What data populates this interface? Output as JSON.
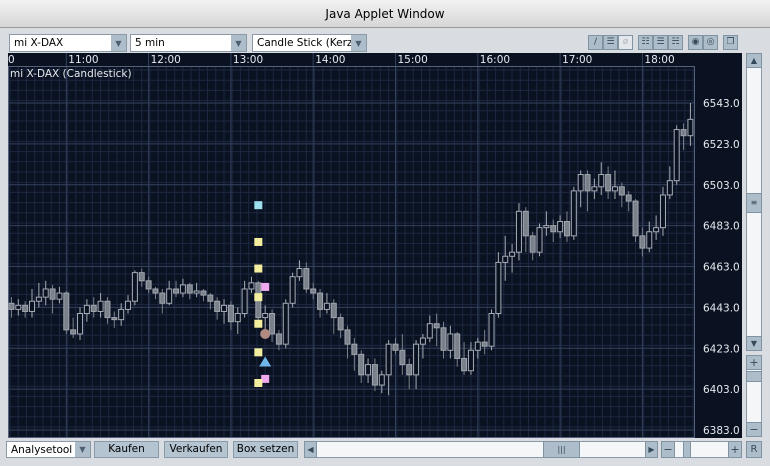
{
  "window": {
    "title": "Java Applet Window"
  },
  "toolbar": {
    "instrument": "mi X-DAX",
    "interval": "5 min",
    "chart_type": "Candle Stick (Kerzen",
    "icons": [
      "draw-line-icon",
      "horizontal-line-icon",
      "delete-icon",
      "grid-dense-icon",
      "grid-medium-icon",
      "grid-sparse-icon",
      "indicator-icon",
      "settings-icon",
      "detach-window-icon"
    ]
  },
  "chart": {
    "label": "mi X-DAX (Candlestick)",
    "time_labels": [
      "0",
      "11:00",
      "12:00",
      "13:00",
      "14:00",
      "15:00",
      "16:00",
      "17:00",
      "18:00"
    ],
    "price_labels": [
      "6543.0",
      "6523.0",
      "6503.0",
      "6483.0",
      "6463.0",
      "6443.0",
      "6423.0",
      "6403.0",
      "6383.0"
    ],
    "colors": {
      "background": "#0a1222",
      "grid": "#1c2740",
      "grid_major": "#34415c",
      "candle_up": "#a6acb5",
      "candle_down": "#7b818a",
      "text": "#e6e9ee"
    }
  },
  "chart_data": {
    "type": "candlestick",
    "title": "mi X-DAX (Candlestick)",
    "interval": "5 min",
    "ylim": [
      6383,
      6543
    ],
    "columns": [
      "time",
      "open",
      "high",
      "low",
      "close"
    ],
    "candles": [
      [
        "10:20",
        6445,
        6448,
        6438,
        6442
      ],
      [
        "10:25",
        6442,
        6447,
        6439,
        6444
      ],
      [
        "10:30",
        6444,
        6446,
        6438,
        6441
      ],
      [
        "10:35",
        6441,
        6452,
        6438,
        6446
      ],
      [
        "10:40",
        6446,
        6455,
        6443,
        6448
      ],
      [
        "10:45",
        6448,
        6456,
        6444,
        6452
      ],
      [
        "10:50",
        6452,
        6454,
        6440,
        6447
      ],
      [
        "10:55",
        6447,
        6453,
        6445,
        6450
      ],
      [
        "11:00",
        6450,
        6451,
        6430,
        6432
      ],
      [
        "11:05",
        6432,
        6438,
        6428,
        6430
      ],
      [
        "11:10",
        6430,
        6443,
        6427,
        6440
      ],
      [
        "11:15",
        6440,
        6447,
        6436,
        6444
      ],
      [
        "11:20",
        6444,
        6448,
        6438,
        6441
      ],
      [
        "11:25",
        6441,
        6450,
        6438,
        6446
      ],
      [
        "11:30",
        6446,
        6448,
        6435,
        6438
      ],
      [
        "11:35",
        6438,
        6441,
        6433,
        6437
      ],
      [
        "11:40",
        6437,
        6445,
        6434,
        6442
      ],
      [
        "11:45",
        6442,
        6449,
        6440,
        6446
      ],
      [
        "11:50",
        6446,
        6461,
        6444,
        6460
      ],
      [
        "11:55",
        6460,
        6462,
        6453,
        6456
      ],
      [
        "12:00",
        6456,
        6458,
        6450,
        6452
      ],
      [
        "12:05",
        6452,
        6453,
        6447,
        6450
      ],
      [
        "12:10",
        6450,
        6452,
        6440,
        6445
      ],
      [
        "12:15",
        6445,
        6456,
        6444,
        6452
      ],
      [
        "12:20",
        6452,
        6456,
        6448,
        6450
      ],
      [
        "12:25",
        6450,
        6457,
        6448,
        6454
      ],
      [
        "12:30",
        6454,
        6455,
        6447,
        6450
      ],
      [
        "12:35",
        6450,
        6455,
        6448,
        6451
      ],
      [
        "12:40",
        6451,
        6452,
        6446,
        6449
      ],
      [
        "12:45",
        6449,
        6450,
        6442,
        6446
      ],
      [
        "12:50",
        6446,
        6448,
        6437,
        6441
      ],
      [
        "12:55",
        6441,
        6447,
        6435,
        6444
      ],
      [
        "13:00",
        6444,
        6446,
        6432,
        6436
      ],
      [
        "13:05",
        6436,
        6443,
        6430,
        6440
      ],
      [
        "13:10",
        6440,
        6456,
        6438,
        6452
      ],
      [
        "13:15",
        6452,
        6458,
        6450,
        6455
      ],
      [
        "13:20",
        6455,
        6456,
        6435,
        6438
      ],
      [
        "13:25",
        6438,
        6444,
        6432,
        6440
      ],
      [
        "13:30",
        6440,
        6442,
        6426,
        6430
      ],
      [
        "13:35",
        6430,
        6432,
        6422,
        6425
      ],
      [
        "13:40",
        6425,
        6447,
        6423,
        6445
      ],
      [
        "13:45",
        6445,
        6460,
        6443,
        6458
      ],
      [
        "13:50",
        6458,
        6466,
        6456,
        6462
      ],
      [
        "13:55",
        6462,
        6465,
        6450,
        6452
      ],
      [
        "14:00",
        6452,
        6455,
        6447,
        6450
      ],
      [
        "14:05",
        6450,
        6452,
        6438,
        6442
      ],
      [
        "14:10",
        6442,
        6450,
        6440,
        6445
      ],
      [
        "14:15",
        6445,
        6447,
        6430,
        6438
      ],
      [
        "14:20",
        6438,
        6440,
        6428,
        6432
      ],
      [
        "14:25",
        6432,
        6434,
        6418,
        6425
      ],
      [
        "14:30",
        6425,
        6428,
        6412,
        6420
      ],
      [
        "14:35",
        6420,
        6422,
        6406,
        6410
      ],
      [
        "14:40",
        6410,
        6418,
        6406,
        6415
      ],
      [
        "14:45",
        6415,
        6418,
        6402,
        6405
      ],
      [
        "14:50",
        6405,
        6412,
        6401,
        6410
      ],
      [
        "14:55",
        6410,
        6427,
        6400,
        6425
      ],
      [
        "15:00",
        6425,
        6428,
        6420,
        6422
      ],
      [
        "15:05",
        6422,
        6430,
        6410,
        6415
      ],
      [
        "15:10",
        6415,
        6418,
        6403,
        6410
      ],
      [
        "15:15",
        6410,
        6427,
        6403,
        6425
      ],
      [
        "15:20",
        6425,
        6430,
        6418,
        6428
      ],
      [
        "15:25",
        6428,
        6439,
        6426,
        6435
      ],
      [
        "15:30",
        6435,
        6440,
        6424,
        6433
      ],
      [
        "15:35",
        6433,
        6436,
        6418,
        6422
      ],
      [
        "15:40",
        6422,
        6434,
        6418,
        6430
      ],
      [
        "15:45",
        6430,
        6431,
        6414,
        6418
      ],
      [
        "15:50",
        6418,
        6426,
        6410,
        6412
      ],
      [
        "15:55",
        6412,
        6426,
        6410,
        6422
      ],
      [
        "16:00",
        6422,
        6428,
        6418,
        6426
      ],
      [
        "16:05",
        6426,
        6432,
        6420,
        6424
      ],
      [
        "16:10",
        6424,
        6442,
        6422,
        6440
      ],
      [
        "16:15",
        6440,
        6470,
        6438,
        6465
      ],
      [
        "16:20",
        6465,
        6478,
        6456,
        6468
      ],
      [
        "16:25",
        6468,
        6474,
        6460,
        6470
      ],
      [
        "16:30",
        6470,
        6494,
        6466,
        6490
      ],
      [
        "16:35",
        6490,
        6492,
        6470,
        6478
      ],
      [
        "16:40",
        6478,
        6480,
        6466,
        6470
      ],
      [
        "16:45",
        6470,
        6484,
        6468,
        6482
      ],
      [
        "16:50",
        6482,
        6490,
        6478,
        6483
      ],
      [
        "16:55",
        6483,
        6486,
        6475,
        6480
      ],
      [
        "17:00",
        6480,
        6488,
        6477,
        6485
      ],
      [
        "17:05",
        6485,
        6490,
        6475,
        6478
      ],
      [
        "17:10",
        6478,
        6502,
        6476,
        6500
      ],
      [
        "17:15",
        6500,
        6510,
        6492,
        6508
      ],
      [
        "17:20",
        6508,
        6510,
        6490,
        6500
      ],
      [
        "17:25",
        6500,
        6506,
        6496,
        6502
      ],
      [
        "17:30",
        6502,
        6514,
        6498,
        6508
      ],
      [
        "17:35",
        6508,
        6512,
        6496,
        6500
      ],
      [
        "17:40",
        6500,
        6510,
        6496,
        6502
      ],
      [
        "17:45",
        6502,
        6504,
        6492,
        6498
      ],
      [
        "17:50",
        6498,
        6500,
        6490,
        6495
      ],
      [
        "17:55",
        6495,
        6496,
        6475,
        6478
      ],
      [
        "18:00",
        6478,
        6482,
        6468,
        6472
      ],
      [
        "18:05",
        6472,
        6485,
        6470,
        6480
      ],
      [
        "18:10",
        6480,
        6488,
        6476,
        6482
      ],
      [
        "18:15",
        6482,
        6502,
        6478,
        6498
      ],
      [
        "18:20",
        6498,
        6512,
        6496,
        6505
      ],
      [
        "18:25",
        6505,
        6532,
        6503,
        6530
      ],
      [
        "18:30",
        6530,
        6533,
        6520,
        6527
      ],
      [
        "18:35",
        6527,
        6543,
        6522,
        6535
      ]
    ],
    "markers": [
      {
        "time": "13:20",
        "price": 6493,
        "shape": "square",
        "color": "#9fe0ee"
      },
      {
        "time": "13:20",
        "price": 6475,
        "shape": "square",
        "color": "#f3ef9e"
      },
      {
        "time": "13:20",
        "price": 6462,
        "shape": "square",
        "color": "#f3ef9e"
      },
      {
        "time": "13:25",
        "price": 6453,
        "shape": "square",
        "color": "#f0a8ee"
      },
      {
        "time": "13:20",
        "price": 6448,
        "shape": "square",
        "color": "#f3ef9e"
      },
      {
        "time": "13:20",
        "price": 6435,
        "shape": "square",
        "color": "#f3ef9e"
      },
      {
        "time": "13:25",
        "price": 6430,
        "shape": "circle",
        "color": "#b08a80"
      },
      {
        "time": "13:20",
        "price": 6421,
        "shape": "square",
        "color": "#f3ef9e"
      },
      {
        "time": "13:25",
        "price": 6416,
        "shape": "triangle",
        "color": "#6fb7ea"
      },
      {
        "time": "13:25",
        "price": 6408,
        "shape": "square",
        "color": "#f0a8ee"
      },
      {
        "time": "13:20",
        "price": 6406,
        "shape": "square",
        "color": "#f3ef9e"
      }
    ]
  },
  "bottom": {
    "tool_select": "Analysetool",
    "buy": "Kaufen",
    "sell": "Verkaufen",
    "box": "Box setzen",
    "zoom_out": "−",
    "zoom_in": "+",
    "reset": "R"
  }
}
